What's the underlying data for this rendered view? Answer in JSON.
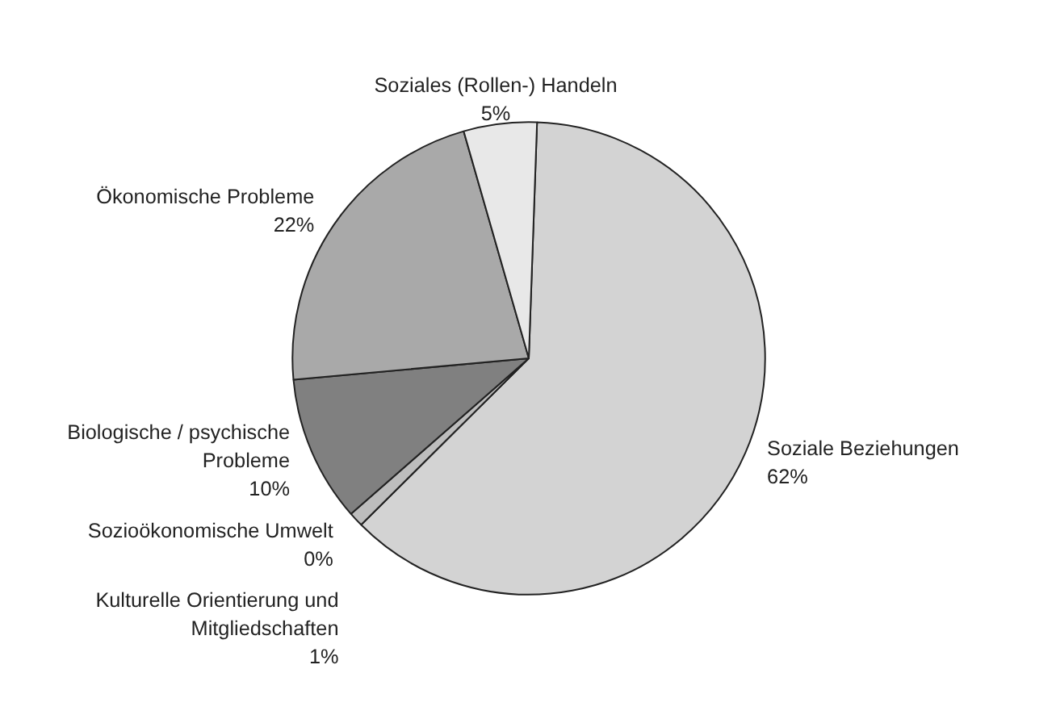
{
  "chart_data": {
    "type": "pie",
    "categories": [
      "Soziale Beziehungen",
      "Kulturelle Orientierung und Mitgliedschaften",
      "Sozioökonomische Umwelt",
      "Biologische / psychische Probleme",
      "Ökonomische Probleme",
      "Soziales (Rollen-) Handeln"
    ],
    "values": [
      62,
      1,
      0,
      10,
      22,
      5
    ],
    "colors": [
      "#d3d3d3",
      "#bdbdbd",
      "#9a9a9a",
      "#808080",
      "#a9a9a9",
      "#e8e8e8"
    ],
    "value_labels": [
      "62%",
      "1%",
      "0%",
      "10%",
      "22%",
      "5%"
    ]
  }
}
